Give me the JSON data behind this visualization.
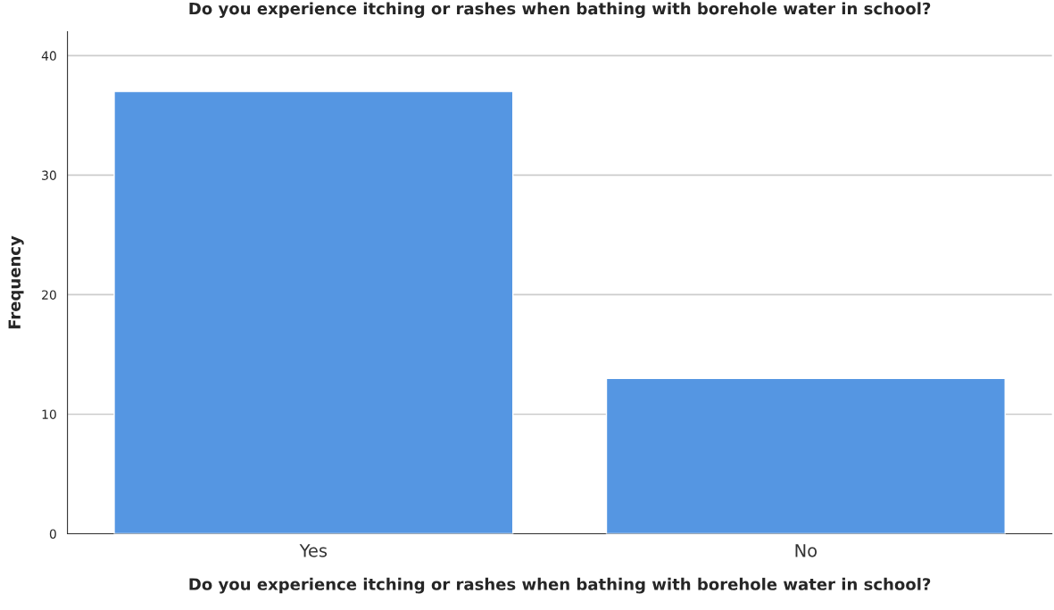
{
  "chart_data": {
    "type": "bar",
    "title": "Do you experience itching or rashes when bathing with borehole water in school?",
    "xlabel": "Do you experience itching or rashes when bathing with borehole water in school?",
    "ylabel": "Frequency",
    "categories": [
      "Yes",
      "No"
    ],
    "values": [
      37,
      13
    ],
    "color": "#5596e2",
    "ylim": [
      0,
      42
    ],
    "yticks": [
      0,
      10,
      20,
      30,
      40
    ],
    "grid": "y"
  }
}
